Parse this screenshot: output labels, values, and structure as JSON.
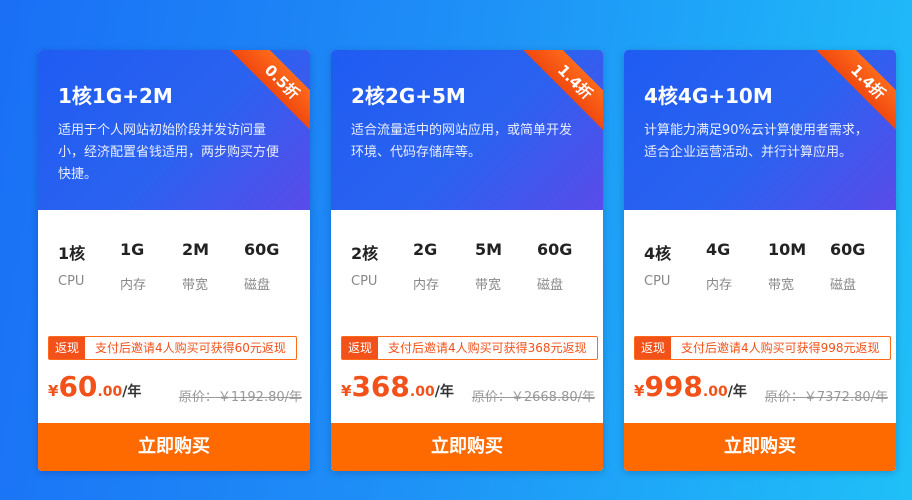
{
  "cards": [
    {
      "badge": "0.5折",
      "title": "1核1G+2M",
      "description": "适用于个人网站初始阶段并发访问量小，经济配置省钱适用，两步购买方便快捷。",
      "specs": [
        {
          "value": "1核",
          "label": "CPU"
        },
        {
          "value": "1G",
          "label": "内存"
        },
        {
          "value": "2M",
          "label": "带宽"
        },
        {
          "value": "60G",
          "label": "磁盘"
        }
      ],
      "promo_tag": "返现",
      "promo_text": "支付后邀请4人购买可获得60元返现",
      "price": {
        "currency": "¥",
        "integer": "60",
        "decimal": ".00",
        "unit": "/年"
      },
      "original_price": "原价：￥1192.80/年",
      "button": "立即购买"
    },
    {
      "badge": "1.4折",
      "title": "2核2G+5M",
      "description": "适合流量适中的网站应用，或简单开发环境、代码存储库等。",
      "specs": [
        {
          "value": "2核",
          "label": "CPU"
        },
        {
          "value": "2G",
          "label": "内存"
        },
        {
          "value": "5M",
          "label": "带宽"
        },
        {
          "value": "60G",
          "label": "磁盘"
        }
      ],
      "promo_tag": "返现",
      "promo_text": "支付后邀请4人购买可获得368元返现",
      "price": {
        "currency": "¥",
        "integer": "368",
        "decimal": ".00",
        "unit": "/年"
      },
      "original_price": "原价：￥2668.80/年",
      "button": "立即购买"
    },
    {
      "badge": "1.4折",
      "title": "4核4G+10M",
      "description": "计算能力满足90%云计算使用者需求，适合企业运营活动、并行计算应用。",
      "specs": [
        {
          "value": "4核",
          "label": "CPU"
        },
        {
          "value": "4G",
          "label": "内存"
        },
        {
          "value": "10M",
          "label": "带宽"
        },
        {
          "value": "60G",
          "label": "磁盘"
        }
      ],
      "promo_tag": "返现",
      "promo_text": "支付后邀请4人购买可获得998元返现",
      "price": {
        "currency": "¥",
        "integer": "998",
        "decimal": ".00",
        "unit": "/年"
      },
      "original_price": "原价：￥7372.80/年",
      "button": "立即购买"
    }
  ]
}
